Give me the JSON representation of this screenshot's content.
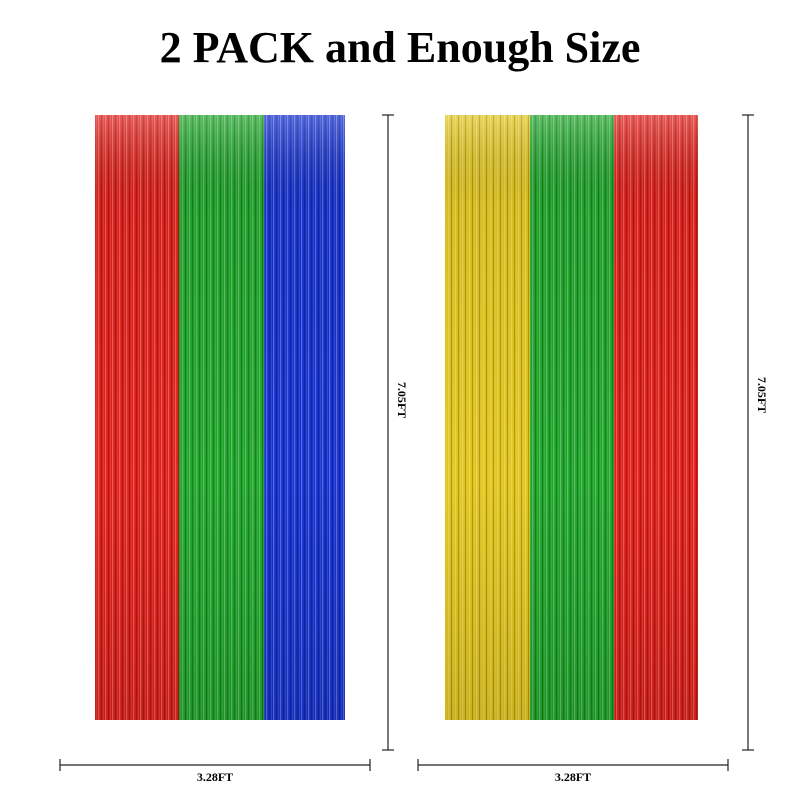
{
  "header": {
    "title": "2 PACK and Enough Size"
  },
  "panels": [
    {
      "height_label": "7.05FT",
      "width_label": "3.28FT"
    },
    {
      "height_label": "7.05FT",
      "width_label": "3.28FT"
    }
  ]
}
